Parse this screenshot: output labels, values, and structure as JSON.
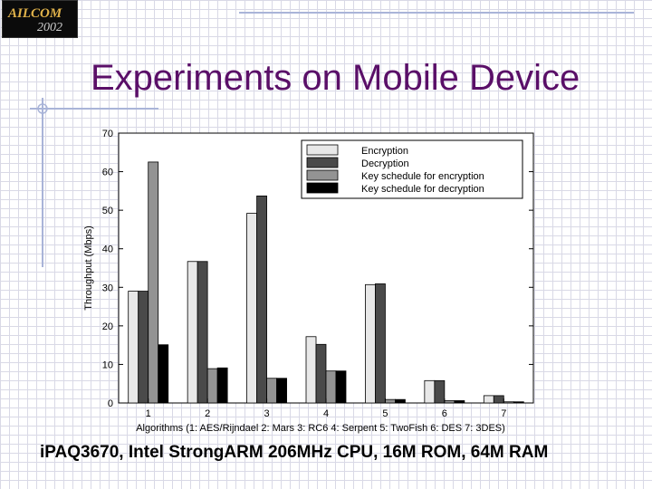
{
  "logo": {
    "text": "AILCOM",
    "year": "2002"
  },
  "slide": {
    "title": "Experiments on Mobile Device",
    "footer": "iPAQ3670, Intel StrongARM 206MHz CPU, 16M ROM, 64M RAM"
  },
  "colors": {
    "title": "#5a0f68",
    "decoration": "#a9b4d8"
  },
  "chart_data": {
    "type": "bar",
    "xlabel": "Algorithms (1: AES/Rijndael 2: Mars 3: RC6 4: Serpent 5: TwoFish 6: DES 7: 3DES)",
    "ylabel": "Throughput (Mbps)",
    "ylim": [
      0,
      70
    ],
    "yticks": [
      0,
      10,
      20,
      30,
      40,
      50,
      60,
      70
    ],
    "categories": [
      "1",
      "2",
      "3",
      "4",
      "5",
      "6",
      "7"
    ],
    "grid": false,
    "legend_position": "top-right",
    "series": [
      {
        "name": "Encryption",
        "color": "#e8e8e8",
        "values": [
          29,
          36.7,
          49.2,
          17.2,
          30.7,
          5.8,
          1.9
        ]
      },
      {
        "name": "Decryption",
        "color": "#4a4a4a",
        "values": [
          29,
          36.7,
          53.7,
          15.2,
          30.9,
          5.8,
          1.9
        ]
      },
      {
        "name": "Key schedule for encryption",
        "color": "#939393",
        "values": [
          62.5,
          8.9,
          6.4,
          8.3,
          0.9,
          0.6,
          0.3
        ]
      },
      {
        "name": "Key schedule for decryption",
        "color": "#000000",
        "values": [
          15.1,
          9.1,
          6.4,
          8.3,
          0.9,
          0.6,
          0.3
        ]
      }
    ]
  }
}
